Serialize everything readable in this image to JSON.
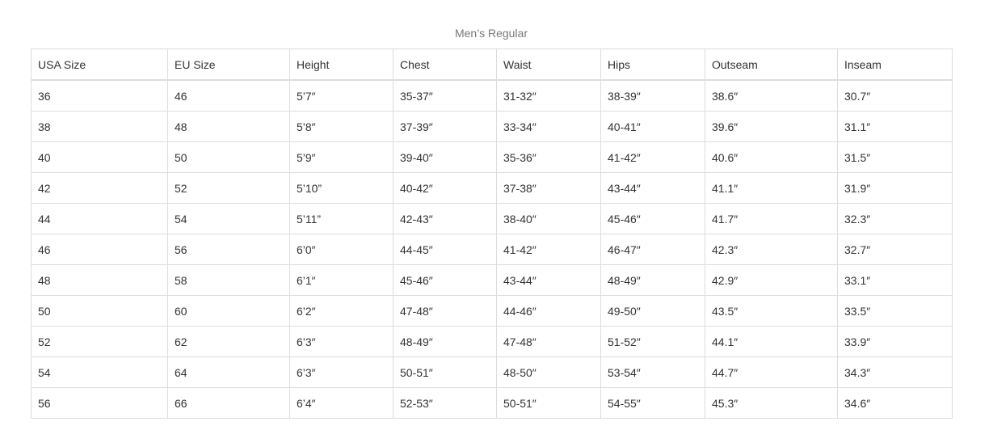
{
  "title": "Men’s Regular",
  "columns": [
    "USA Size",
    "EU Size",
    "Height",
    "Chest",
    "Waist",
    "Hips",
    "Outseam",
    "Inseam"
  ],
  "rows": [
    [
      "36",
      "46",
      "5’7″",
      "35-37″",
      "31-32″",
      "38-39″",
      "38.6″",
      "30.7″"
    ],
    [
      "38",
      "48",
      "5’8″",
      "37-39″",
      "33-34″",
      "40-41″",
      "39.6″",
      "31.1″"
    ],
    [
      "40",
      "50",
      "5’9″",
      "39-40″",
      "35-36″",
      "41-42″",
      "40.6″",
      "31.5″"
    ],
    [
      "42",
      "52",
      "5’10”",
      "40-42″",
      "37-38″",
      "43-44″",
      "41.1″",
      "31.9″"
    ],
    [
      "44",
      "54",
      "5’11”",
      "42-43″",
      "38-40″",
      "45-46″",
      "41.7″",
      "32.3″"
    ],
    [
      "46",
      "56",
      "6’0″",
      "44-45″",
      "41-42″",
      "46-47″",
      "42.3″",
      "32.7″"
    ],
    [
      "48",
      "58",
      "6’1″",
      "45-46″",
      "43-44″",
      "48-49″",
      "42.9″",
      "33.1″"
    ],
    [
      "50",
      "60",
      "6’2″",
      "47-48″",
      "44-46″",
      "49-50″",
      "43.5″",
      "33.5″"
    ],
    [
      "52",
      "62",
      "6’3″",
      "48-49″",
      "47-48″",
      "51-52″",
      "44.1″",
      "33.9″"
    ],
    [
      "54",
      "64",
      "6’3″",
      "50-51″",
      "48-50″",
      "53-54″",
      "44.7″",
      "34.3″"
    ],
    [
      "56",
      "66",
      "6’4″",
      "52-53″",
      "50-51″",
      "54-55″",
      "45.3″",
      "34.6″"
    ]
  ]
}
